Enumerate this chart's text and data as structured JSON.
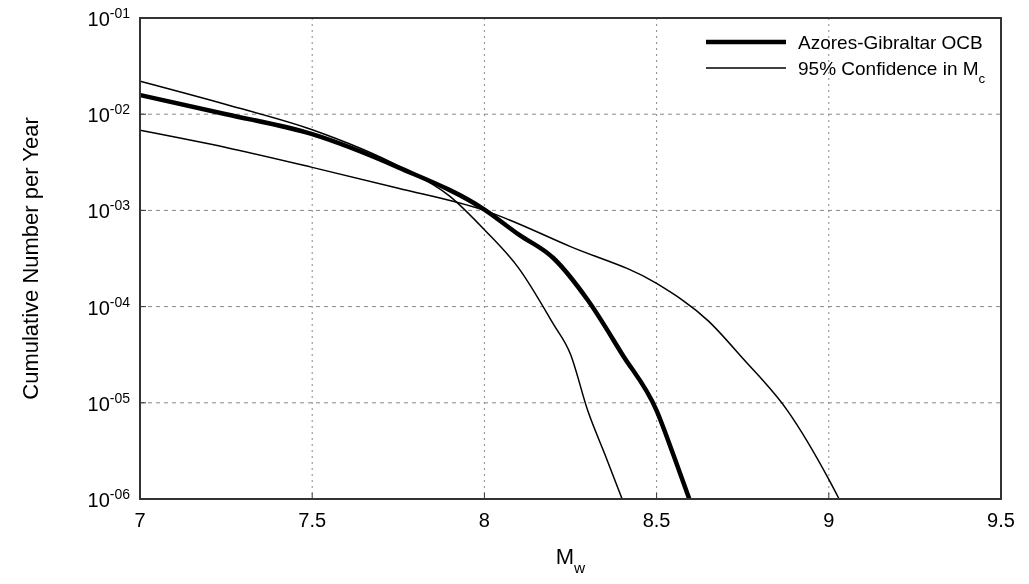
{
  "chart_data": {
    "type": "line",
    "xlabel": "M$_{w}$",
    "ylabel": "Cumulative Number per Year",
    "log": "y",
    "grid": true,
    "legend": "top right",
    "xlim": [
      7,
      9.5
    ],
    "xticks": [
      7,
      7.5,
      8,
      8.5,
      9,
      9.5
    ],
    "ylim": [
      1e-06,
      0.1
    ],
    "yticks": [
      {
        "value": 0.1,
        "label": "10$^{-01}$"
      },
      {
        "value": 0.01,
        "label": "10$^{-02}$"
      },
      {
        "value": 0.001,
        "label": "10$^{-03}$"
      },
      {
        "value": 0.0001,
        "label": "10$^{-04}$"
      },
      {
        "value": 1e-05,
        "label": "10$^{-05}$"
      },
      {
        "value": 1e-06,
        "label": "10$^{-06}$"
      }
    ],
    "series": [
      {
        "name": "Azores-Gibraltar OCB",
        "color": "#000000",
        "x": [
          7,
          7.25,
          7.5,
          7.75,
          8,
          8.1,
          8.2,
          8.3,
          8.4,
          8.5,
          8.55,
          8.595
        ],
        "values": [
          0.0158,
          0.01,
          0.0062,
          0.0028,
          0.00102,
          0.00056,
          0.00032,
          0.000117,
          3.2e-05,
          8.3e-06,
          2.8e-06,
          1e-06
        ]
      },
      {
        "name": "95% Confidence in M$_{c}$",
        "color": "#000000",
        "x": [
          7,
          7.25,
          7.5,
          7.75,
          8,
          8.25,
          8.5,
          8.65,
          8.75,
          8.88,
          9,
          9.03
        ],
        "values": [
          0.0068,
          0.0045,
          0.0028,
          0.0017,
          0.001,
          0.00042,
          0.000174,
          7.1e-05,
          2.9e-05,
          8.3e-06,
          1.6e-06,
          1e-06
        ]
      },
      {
        "color": "#000000",
        "x": [
          7,
          7.25,
          7.5,
          7.75,
          7.9,
          8,
          8.1,
          8.2,
          8.25,
          8.3,
          8.35,
          8.4
        ],
        "values": [
          0.022,
          0.0126,
          0.0069,
          0.0029,
          0.0014,
          0.00063,
          0.00025,
          6.6e-05,
          3.2e-05,
          8.3e-06,
          2.9e-06,
          1e-06
        ]
      }
    ]
  }
}
